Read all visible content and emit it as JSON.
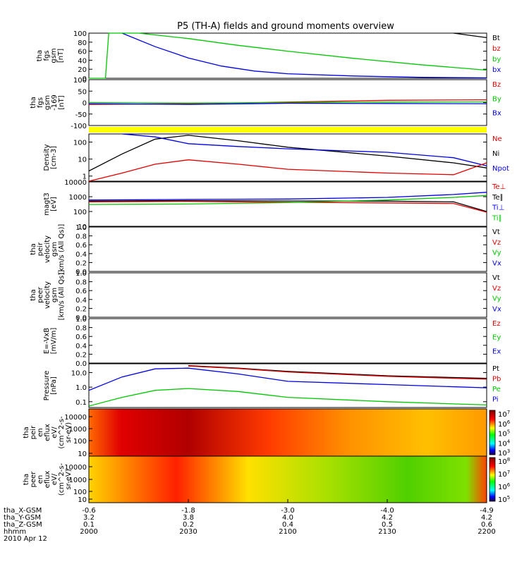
{
  "title": "P5 (TH-A) fields and ground moments overview",
  "colors": {
    "black": "#000000",
    "red": "#e00000",
    "green": "#00c800",
    "blue": "#0000dd",
    "yellow": "#ffff00"
  },
  "panels": [
    {
      "id": "fgs",
      "ylabel": [
        "tha",
        "fgs",
        "gsm",
        "[nT]"
      ],
      "yticks": [
        "100",
        "80",
        "60",
        "40",
        "20",
        "0"
      ],
      "legend": [
        {
          "text": "Bt",
          "color": "black"
        },
        {
          "text": "bz",
          "color": "red"
        },
        {
          "text": "by",
          "color": "green"
        },
        {
          "text": "bx",
          "color": "blue"
        }
      ]
    },
    {
      "id": "fgs2",
      "ylabel": [
        "tha",
        "fgs",
        "gsm",
        "-169",
        "[nT]"
      ],
      "yticks": [
        "100",
        "50",
        "0",
        "-50",
        "-100"
      ],
      "legend": [
        {
          "text": "Bz",
          "color": "red"
        },
        {
          "text": "By",
          "color": "green"
        },
        {
          "text": "Bx",
          "color": "blue"
        }
      ]
    },
    {
      "id": "density",
      "ylabel": [
        "Density",
        "[cm-3]"
      ],
      "yticks": [
        "100",
        "10",
        "1"
      ],
      "legend": [
        {
          "text": "Ne",
          "color": "red"
        },
        {
          "text": "Ni",
          "color": "black"
        },
        {
          "text": "Npot",
          "color": "blue"
        }
      ]
    },
    {
      "id": "temp",
      "ylabel": [
        "magt3",
        "[eV]"
      ],
      "yticks": [
        "10000",
        "1000",
        "100",
        "10"
      ],
      "legend": [
        {
          "text": "Te⊥",
          "color": "red"
        },
        {
          "text": "Te∥",
          "color": "black"
        },
        {
          "text": "Ti⊥",
          "color": "blue"
        },
        {
          "text": "Ti∥",
          "color": "green"
        }
      ]
    },
    {
      "id": "peir_vel",
      "ylabel": [
        "tha",
        "peir",
        "velocity",
        "gsm",
        "[km/s (All Qs)]"
      ],
      "yticks": [
        "1.0",
        "0.8",
        "0.6",
        "0.4",
        "0.2",
        "0.0"
      ],
      "legend": [
        {
          "text": "Vt",
          "color": "black"
        },
        {
          "text": "Vz",
          "color": "red"
        },
        {
          "text": "Vy",
          "color": "green"
        },
        {
          "text": "Vx",
          "color": "blue"
        }
      ]
    },
    {
      "id": "peer_vel",
      "ylabel": [
        "tha",
        "peer",
        "velocity",
        "gsm",
        "[km/s (All Qs)]"
      ],
      "yticks": [
        "1.0",
        "0.8",
        "0.6",
        "0.4",
        "0.2",
        "0.0"
      ],
      "legend": [
        {
          "text": "Vt",
          "color": "black"
        },
        {
          "text": "Vz",
          "color": "red"
        },
        {
          "text": "Vy",
          "color": "green"
        },
        {
          "text": "Vx",
          "color": "blue"
        }
      ]
    },
    {
      "id": "efield",
      "ylabel": [
        "E=-VxB",
        "[mV/m]"
      ],
      "yticks": [
        "1.0",
        "0.8",
        "0.6",
        "0.4",
        "0.2",
        "0.0"
      ],
      "legend": [
        {
          "text": "Ez",
          "color": "red"
        },
        {
          "text": "Ey",
          "color": "green"
        },
        {
          "text": "Ex",
          "color": "blue"
        }
      ]
    },
    {
      "id": "pressure",
      "ylabel": [
        "Pressure",
        "[nPa]"
      ],
      "yticks": [
        "10.0",
        "1.0",
        "0.1"
      ],
      "legend": [
        {
          "text": "Pt",
          "color": "black"
        },
        {
          "text": "Pb",
          "color": "red"
        },
        {
          "text": "Pe",
          "color": "green"
        },
        {
          "text": "Pi",
          "color": "blue"
        }
      ]
    },
    {
      "id": "peir_spec",
      "ylabel": [
        "tha",
        "peir",
        "en",
        "eflux",
        "eV/",
        "(cm^2-s-",
        "sr-eV)"
      ],
      "yticks": [
        "10000",
        "1000",
        "100",
        "10"
      ],
      "cbar": [
        "10^7",
        "10^6",
        "10^5",
        "10^4",
        "10^3"
      ]
    },
    {
      "id": "peer_spec",
      "ylabel": [
        "tha",
        "peer",
        "en",
        "eflux",
        "eV/",
        "(cm^2-s-",
        "sr-eV)"
      ],
      "yticks": [
        "10000",
        "1000",
        "100",
        "10"
      ],
      "cbar": [
        "10^8",
        "10^7",
        "10^6",
        "10^5"
      ]
    }
  ],
  "xaxis": {
    "rows": [
      {
        "label": "tha_X-GSM",
        "values": [
          "-0.6",
          "-1.8",
          "-3.0",
          "-4.0",
          "-4.9"
        ]
      },
      {
        "label": "tha_Y-GSM",
        "values": [
          "3.2",
          "3.8",
          "4.0",
          "4.2",
          "4.2"
        ]
      },
      {
        "label": "tha_Z-GSM",
        "values": [
          "0.1",
          "0.2",
          "0.4",
          "0.5",
          "0.6"
        ]
      },
      {
        "label": "hhmm",
        "values": [
          "2000",
          "2030",
          "2100",
          "2130",
          "2200"
        ]
      }
    ],
    "date": "2010 Apr 12"
  },
  "chart_data": {
    "type": "line",
    "title": "P5 (TH-A) fields and ground moments overview",
    "time_hhmm": [
      "2000",
      "2030",
      "2100",
      "2130",
      "2200"
    ],
    "series": [
      {
        "panel": "fgs",
        "name": "bx",
        "x": [
          2000,
          2010,
          2020,
          2030,
          2040,
          2050,
          2100,
          2120,
          2140,
          2200
        ],
        "y": [
          null,
          100,
          70,
          45,
          27,
          16,
          10,
          5,
          2,
          1
        ]
      },
      {
        "panel": "fgs",
        "name": "by",
        "x": [
          2000,
          2005,
          2006,
          2015,
          2030,
          2045,
          2100,
          2120,
          2140,
          2200
        ],
        "y": [
          0,
          0,
          100,
          100,
          88,
          73,
          60,
          44,
          30,
          18
        ]
      },
      {
        "panel": "fgs",
        "name": "Bt",
        "x": [
          2150,
          2200
        ],
        "y": [
          100,
          90
        ]
      },
      {
        "panel": "fgs2",
        "name": "Bz",
        "x": [
          2000,
          2030,
          2100,
          2130,
          2200
        ],
        "y": [
          -8,
          -5,
          2,
          10,
          12
        ]
      },
      {
        "panel": "fgs2",
        "name": "By",
        "x": [
          2000,
          2030,
          2100,
          2130,
          2200
        ],
        "y": [
          0,
          -2,
          0,
          2,
          3
        ]
      },
      {
        "panel": "fgs2",
        "name": "Bx",
        "x": [
          2000,
          2030,
          2100,
          2130,
          2200
        ],
        "y": [
          -5,
          -8,
          -3,
          -4,
          -5
        ]
      },
      {
        "panel": "density",
        "name": "Ni",
        "x": [
          2000,
          2010,
          2020,
          2030,
          2045,
          2100,
          2130,
          2150,
          2200
        ],
        "y": [
          2,
          20,
          150,
          250,
          120,
          50,
          15,
          6,
          3
        ]
      },
      {
        "panel": "density",
        "name": "Npot",
        "x": [
          2010,
          2020,
          2030,
          2045,
          2100,
          2130,
          2150,
          2200
        ],
        "y": [
          300,
          200,
          80,
          55,
          40,
          25,
          12,
          4
        ]
      },
      {
        "panel": "density",
        "name": "Ne",
        "x": [
          2000,
          2010,
          2020,
          2030,
          2045,
          2100,
          2130,
          2150,
          2200
        ],
        "y": [
          0.5,
          1.5,
          5,
          9,
          5,
          2.5,
          1.5,
          1.2,
          6
        ]
      },
      {
        "panel": "temp",
        "name": "Te∥",
        "x": [
          2000,
          2030,
          2100,
          2130,
          2150,
          2200
        ],
        "y": [
          500,
          550,
          520,
          500,
          450,
          100
        ]
      },
      {
        "panel": "temp",
        "name": "Te⊥",
        "x": [
          2000,
          2030,
          2100,
          2130,
          2150,
          2200
        ],
        "y": [
          450,
          480,
          420,
          380,
          350,
          90
        ]
      },
      {
        "panel": "temp",
        "name": "Ti⊥",
        "x": [
          2000,
          2030,
          2100,
          2130,
          2150,
          2200
        ],
        "y": [
          600,
          650,
          700,
          900,
          1400,
          2000
        ]
      },
      {
        "panel": "temp",
        "name": "Ti∥",
        "x": [
          2000,
          2030,
          2100,
          2130,
          2150,
          2200
        ],
        "y": [
          300,
          320,
          400,
          600,
          900,
          1200
        ]
      },
      {
        "panel": "pressure",
        "name": "Pt",
        "x": [
          2030,
          2045,
          2100,
          2130,
          2200
        ],
        "y": [
          30,
          20,
          12,
          6,
          4
        ]
      },
      {
        "panel": "pressure",
        "name": "Pb",
        "x": [
          2030,
          2045,
          2100,
          2130,
          2200
        ],
        "y": [
          28,
          19,
          11,
          5.5,
          3.5
        ]
      },
      {
        "panel": "pressure",
        "name": "Pi",
        "x": [
          2000,
          2010,
          2020,
          2030,
          2045,
          2100,
          2130,
          2200
        ],
        "y": [
          0.6,
          5,
          18,
          20,
          8,
          2.5,
          1.5,
          0.9
        ]
      },
      {
        "panel": "pressure",
        "name": "Pe",
        "x": [
          2000,
          2010,
          2020,
          2030,
          2045,
          2100,
          2130,
          2200
        ],
        "y": [
          0.05,
          0.2,
          0.6,
          0.8,
          0.5,
          0.2,
          0.1,
          0.06
        ]
      }
    ]
  }
}
